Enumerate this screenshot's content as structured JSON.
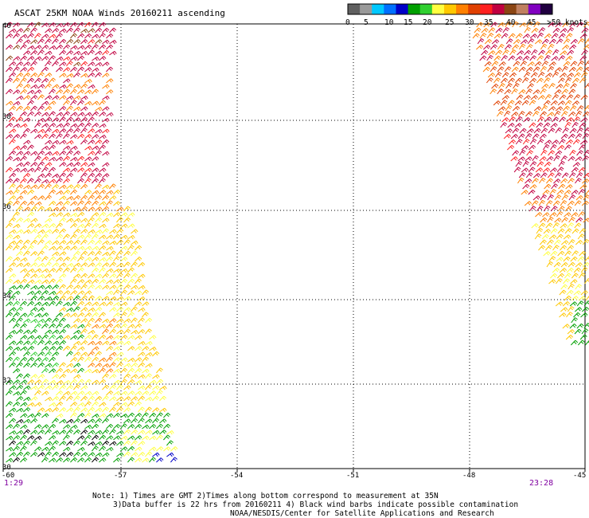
{
  "title": "ASCAT 25KM NOAA Winds 20160211 ascending",
  "legend": {
    "colors": [
      "#606060",
      "#9a9a9a",
      "#00c8ff",
      "#0070ff",
      "#0000c8",
      "#00a000",
      "#30d030",
      "#ffff40",
      "#ffc800",
      "#ff8000",
      "#e04000",
      "#ff2020",
      "#c00040",
      "#8b4513",
      "#c08060",
      "#8000c0",
      "#200040"
    ],
    "labels": [
      "0",
      "5",
      "10",
      "15",
      "20",
      "25",
      "30",
      "35",
      "40",
      "45",
      ">50 knots"
    ]
  },
  "map": {
    "lat_labels": [
      "40",
      "38",
      "36",
      "34",
      "32",
      "30"
    ],
    "lon_labels": [
      "-60",
      "-57",
      "-54",
      "-51",
      "-48",
      "-45"
    ],
    "time_left": "1:29",
    "time_right": "23:28"
  },
  "notes": {
    "line1": "Note: 1) Times are GMT 2)Times along bottom correspond to measurement at 35N",
    "line2": "3)Data buffer is 22 hrs from 20160211 4) Black wind barbs indicate possible contamination",
    "line3": "NOAA/NESDIS/Center for Satellite Applications and Research"
  }
}
